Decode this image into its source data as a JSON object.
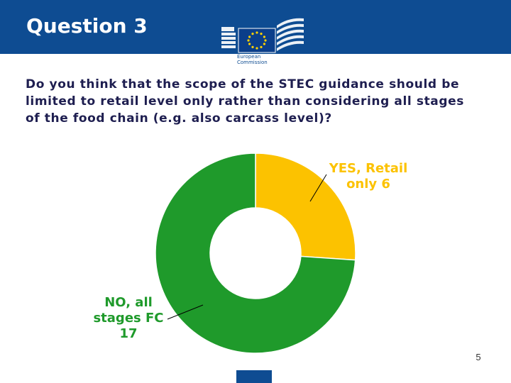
{
  "slide": {
    "title": "Question 3",
    "logo_text": "European\nCommission",
    "question_lines": [
      "Do you think that the scope of the STEC guidance should be",
      "limited to retail level only rather than considering all stages",
      "of the food chain (e.g. also carcass level)?"
    ],
    "page_number": "5"
  },
  "colors": {
    "header": "#0e4c92",
    "question_text": "#1e1e50",
    "yes": "#fcc200",
    "no": "#1f9a2b"
  },
  "chart_data": {
    "type": "pie",
    "style": "donut",
    "categories": [
      "YES, Retail only",
      "NO, all stages FC"
    ],
    "values": [
      6,
      17
    ],
    "data_labels": [
      "YES, Retail\nonly 6",
      "NO, all\nstages FC\n17"
    ],
    "colors": [
      "#fcc200",
      "#1f9a2b"
    ],
    "start": "12 o'clock",
    "direction": "clockwise",
    "legend": "none",
    "label_placement": "outside with leader lines"
  }
}
